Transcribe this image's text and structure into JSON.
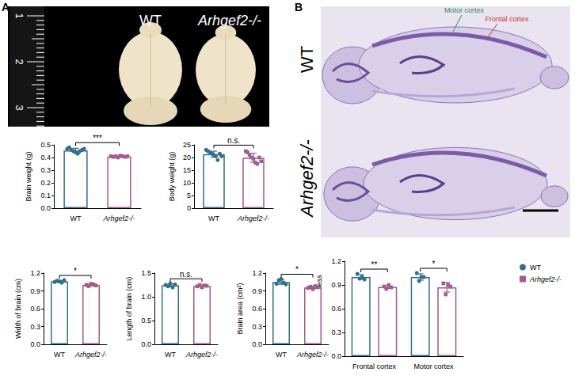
{
  "panel_labels": [
    "A",
    "B"
  ],
  "photo_a": {
    "ruler_labels": [
      "1",
      "2",
      "3"
    ],
    "labels": [
      "WT",
      "Arhgef2-/-"
    ]
  },
  "photo_b": {
    "row_labels": [
      "WT",
      "Arhgef2-/-"
    ],
    "annotations": [
      {
        "text": "Motor cortex",
        "color": "#2e8b57"
      },
      {
        "text": "Frontal cortex",
        "color": "#c0392b"
      }
    ]
  },
  "chart_data": [
    {
      "type": "bar",
      "y_label": "Brain weight (g)",
      "categories": [
        "WT",
        "Arhgef2-/-"
      ],
      "values": [
        0.457,
        0.408
      ],
      "errors": [
        0.016,
        0.005
      ],
      "points": [
        [
          0.47,
          0.48,
          0.46,
          0.45,
          0.44,
          0.43,
          0.45,
          0.46,
          0.47
        ],
        [
          0.41,
          0.405,
          0.41,
          0.4,
          0.415,
          0.41,
          0.405,
          0.41
        ]
      ],
      "colors": [
        "#2f6f8f",
        "#a45a8c"
      ],
      "significance": [
        "***"
      ],
      "ylim": [
        0,
        0.5
      ],
      "yticks": [
        {
          "value": 0,
          "label": "0.0"
        },
        0.1,
        0.2,
        0.3,
        0.4,
        0.5
      ],
      "grid": false
    },
    {
      "type": "bar",
      "y_label": "Body weight (g)",
      "categories": [
        "WT",
        "Arhgef2-/-"
      ],
      "values": [
        21.3,
        19.9
      ],
      "errors": [
        1.2,
        1.8
      ],
      "points": [
        [
          23,
          22.5,
          22,
          21.5,
          21,
          20.5,
          19,
          21.5,
          20.5
        ],
        [
          22.5,
          22,
          21,
          20,
          19.5,
          18,
          17.5,
          20,
          18.5
        ]
      ],
      "colors": [
        "#2f6f8f",
        "#a45a8c"
      ],
      "significance": [
        "n.s."
      ],
      "ylim": [
        0,
        25
      ],
      "yticks": [
        0,
        5,
        10,
        15,
        20,
        25
      ],
      "grid": false
    },
    {
      "type": "bar",
      "y_label": "Width of brain (cm)",
      "categories": [
        "WT",
        "Arhgef2-/-"
      ],
      "values": [
        1.06,
        1.0
      ],
      "errors": [
        0.016,
        0.016
      ],
      "points": [
        [
          1.05,
          1.07,
          1.06,
          1.04,
          1.08
        ],
        [
          1.0,
          0.98,
          1.02,
          1.01,
          0.99
        ]
      ],
      "colors": [
        "#2f6f8f",
        "#a45a8c"
      ],
      "significance": [
        "*"
      ],
      "ylim": [
        0,
        1.2
      ],
      "yticks": [
        {
          "value": 0,
          "label": "0.0"
        },
        0.3,
        0.6,
        0.9,
        1.2
      ],
      "grid": false
    },
    {
      "type": "bar",
      "y_label": "Length of brain (cm)",
      "categories": [
        "WT",
        "Arhgef2-/-"
      ],
      "values": [
        1.24,
        1.23
      ],
      "errors": [
        0.03,
        0.02
      ],
      "points": [
        [
          1.25,
          1.22,
          1.28,
          1.2,
          1.26
        ],
        [
          1.22,
          1.25,
          1.2,
          1.24,
          1.23
        ]
      ],
      "colors": [
        "#2f6f8f",
        "#a45a8c"
      ],
      "significance": [
        "n.s."
      ],
      "ylim": [
        0,
        1.5
      ],
      "yticks": [
        {
          "value": 0,
          "label": "0.0"
        },
        0.5,
        {
          "value": 1,
          "label": "1.0"
        },
        1.5
      ],
      "grid": false
    },
    {
      "type": "bar",
      "y_label": "Brain area (cm²)",
      "categories": [
        "WT",
        "Arhgef2-/-"
      ],
      "values": [
        1.05,
        0.958
      ],
      "errors": [
        0.04,
        0.02
      ],
      "points": [
        [
          1.02,
          1.08,
          1.1,
          1.04,
          1.01
        ],
        [
          0.95,
          0.97,
          0.93,
          0.98,
          0.96
        ]
      ],
      "colors": [
        "#2f6f8f",
        "#a45a8c"
      ],
      "significance": [
        "*"
      ],
      "ylim": [
        0,
        1.2
      ],
      "yticks": [
        {
          "value": 0,
          "label": "0.0"
        },
        0.3,
        0.6,
        0.9,
        1.2
      ],
      "grid": false
    },
    {
      "type": "bar",
      "y_label": "Normalized thickness",
      "categories": [
        "Frontal cortex",
        "Motor cortex"
      ],
      "series": [
        {
          "name": "WT",
          "color": "#2f6f8f",
          "marker": "circle",
          "values": [
            1.0,
            1.0
          ],
          "errors": [
            0.03,
            0.04
          ],
          "points": [
            [
              1.04,
              0.98,
              1.0,
              0.97
            ],
            [
              1.05,
              0.95,
              1.0,
              1.0
            ]
          ]
        },
        {
          "name": "Arhgef2-/-",
          "color": "#a45a8c",
          "marker": "square",
          "values": [
            0.875,
            0.87
          ],
          "errors": [
            0.02,
            0.06
          ],
          "points": [
            [
              0.88,
              0.85,
              0.9,
              0.87
            ],
            [
              0.92,
              0.78,
              0.9,
              0.88
            ]
          ]
        }
      ],
      "significance": [
        "**",
        "*"
      ],
      "legend": "top-right",
      "ylim": [
        0,
        1.2
      ],
      "yticks": [
        {
          "value": 0,
          "label": "0.0"
        },
        0.3,
        0.6,
        0.9,
        1.2
      ],
      "grid": false
    }
  ]
}
